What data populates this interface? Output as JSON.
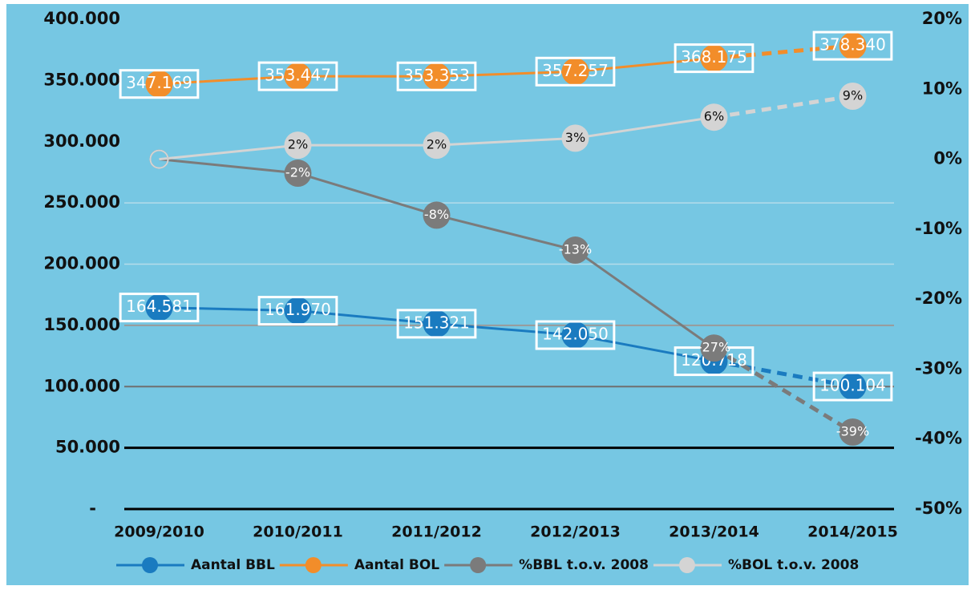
{
  "chart_data": {
    "type": "line",
    "categories": [
      "2009/2010",
      "2010/2011",
      "2011/2012",
      "2012/2013",
      "2013/2014",
      "2014/2015"
    ],
    "series": [
      {
        "name": "Aantal BBL",
        "color": "#1a7bc0",
        "values": [
          164581,
          161970,
          151321,
          142050,
          120718,
          100104
        ],
        "value_labels": [
          "164.581",
          "161.970",
          "151.321",
          "142.050",
          "120.718",
          "100.104"
        ]
      },
      {
        "name": "Aantal BOL",
        "color": "#f28d2a",
        "values": [
          347169,
          353447,
          353353,
          357257,
          368175,
          378340
        ],
        "value_labels": [
          "347.169",
          "353.447",
          "353.353",
          "357.257",
          "368.175",
          "378.340"
        ]
      },
      {
        "name": "%BBL t.o.v. 2008",
        "color": "#7b7b7b",
        "axis": "y2",
        "values": [
          0,
          -2,
          -8,
          -13,
          -27,
          -39
        ],
        "value_labels": [
          null,
          "-2%",
          "-8%",
          "-13%",
          "-27%",
          "-39%"
        ]
      },
      {
        "name": "%BOL t.o.v. 2008",
        "color": "#d4d4d4",
        "axis": "y2",
        "values": [
          0,
          2,
          2,
          3,
          6,
          9
        ],
        "value_labels": [
          null,
          "2%",
          "2%",
          "3%",
          "6%",
          "9%"
        ]
      }
    ],
    "ylim": [
      0,
      400000
    ],
    "yticks": [
      {
        "value": 0,
        "label": "-"
      },
      {
        "value": 50000,
        "label": "50.000"
      },
      {
        "value": 100000,
        "label": "100.000"
      },
      {
        "value": 150000,
        "label": "150.000"
      },
      {
        "value": 200000,
        "label": "200.000"
      },
      {
        "value": 250000,
        "label": "250.000"
      },
      {
        "value": 300000,
        "label": "300.000"
      },
      {
        "value": 350000,
        "label": "350.000"
      },
      {
        "value": 400000,
        "label": "400.000"
      }
    ],
    "y2lim": [
      -50,
      20
    ],
    "y2ticks": [
      {
        "value": -50,
        "label": "-50%"
      },
      {
        "value": -40,
        "label": "-40%"
      },
      {
        "value": -30,
        "label": "-30%"
      },
      {
        "value": -20,
        "label": "-20%"
      },
      {
        "value": -10,
        "label": "-10%"
      },
      {
        "value": 0,
        "label": "0%"
      },
      {
        "value": 10,
        "label": "10%"
      },
      {
        "value": 20,
        "label": "20%"
      }
    ],
    "last_segment_dashed": true,
    "legend": "bottom"
  }
}
